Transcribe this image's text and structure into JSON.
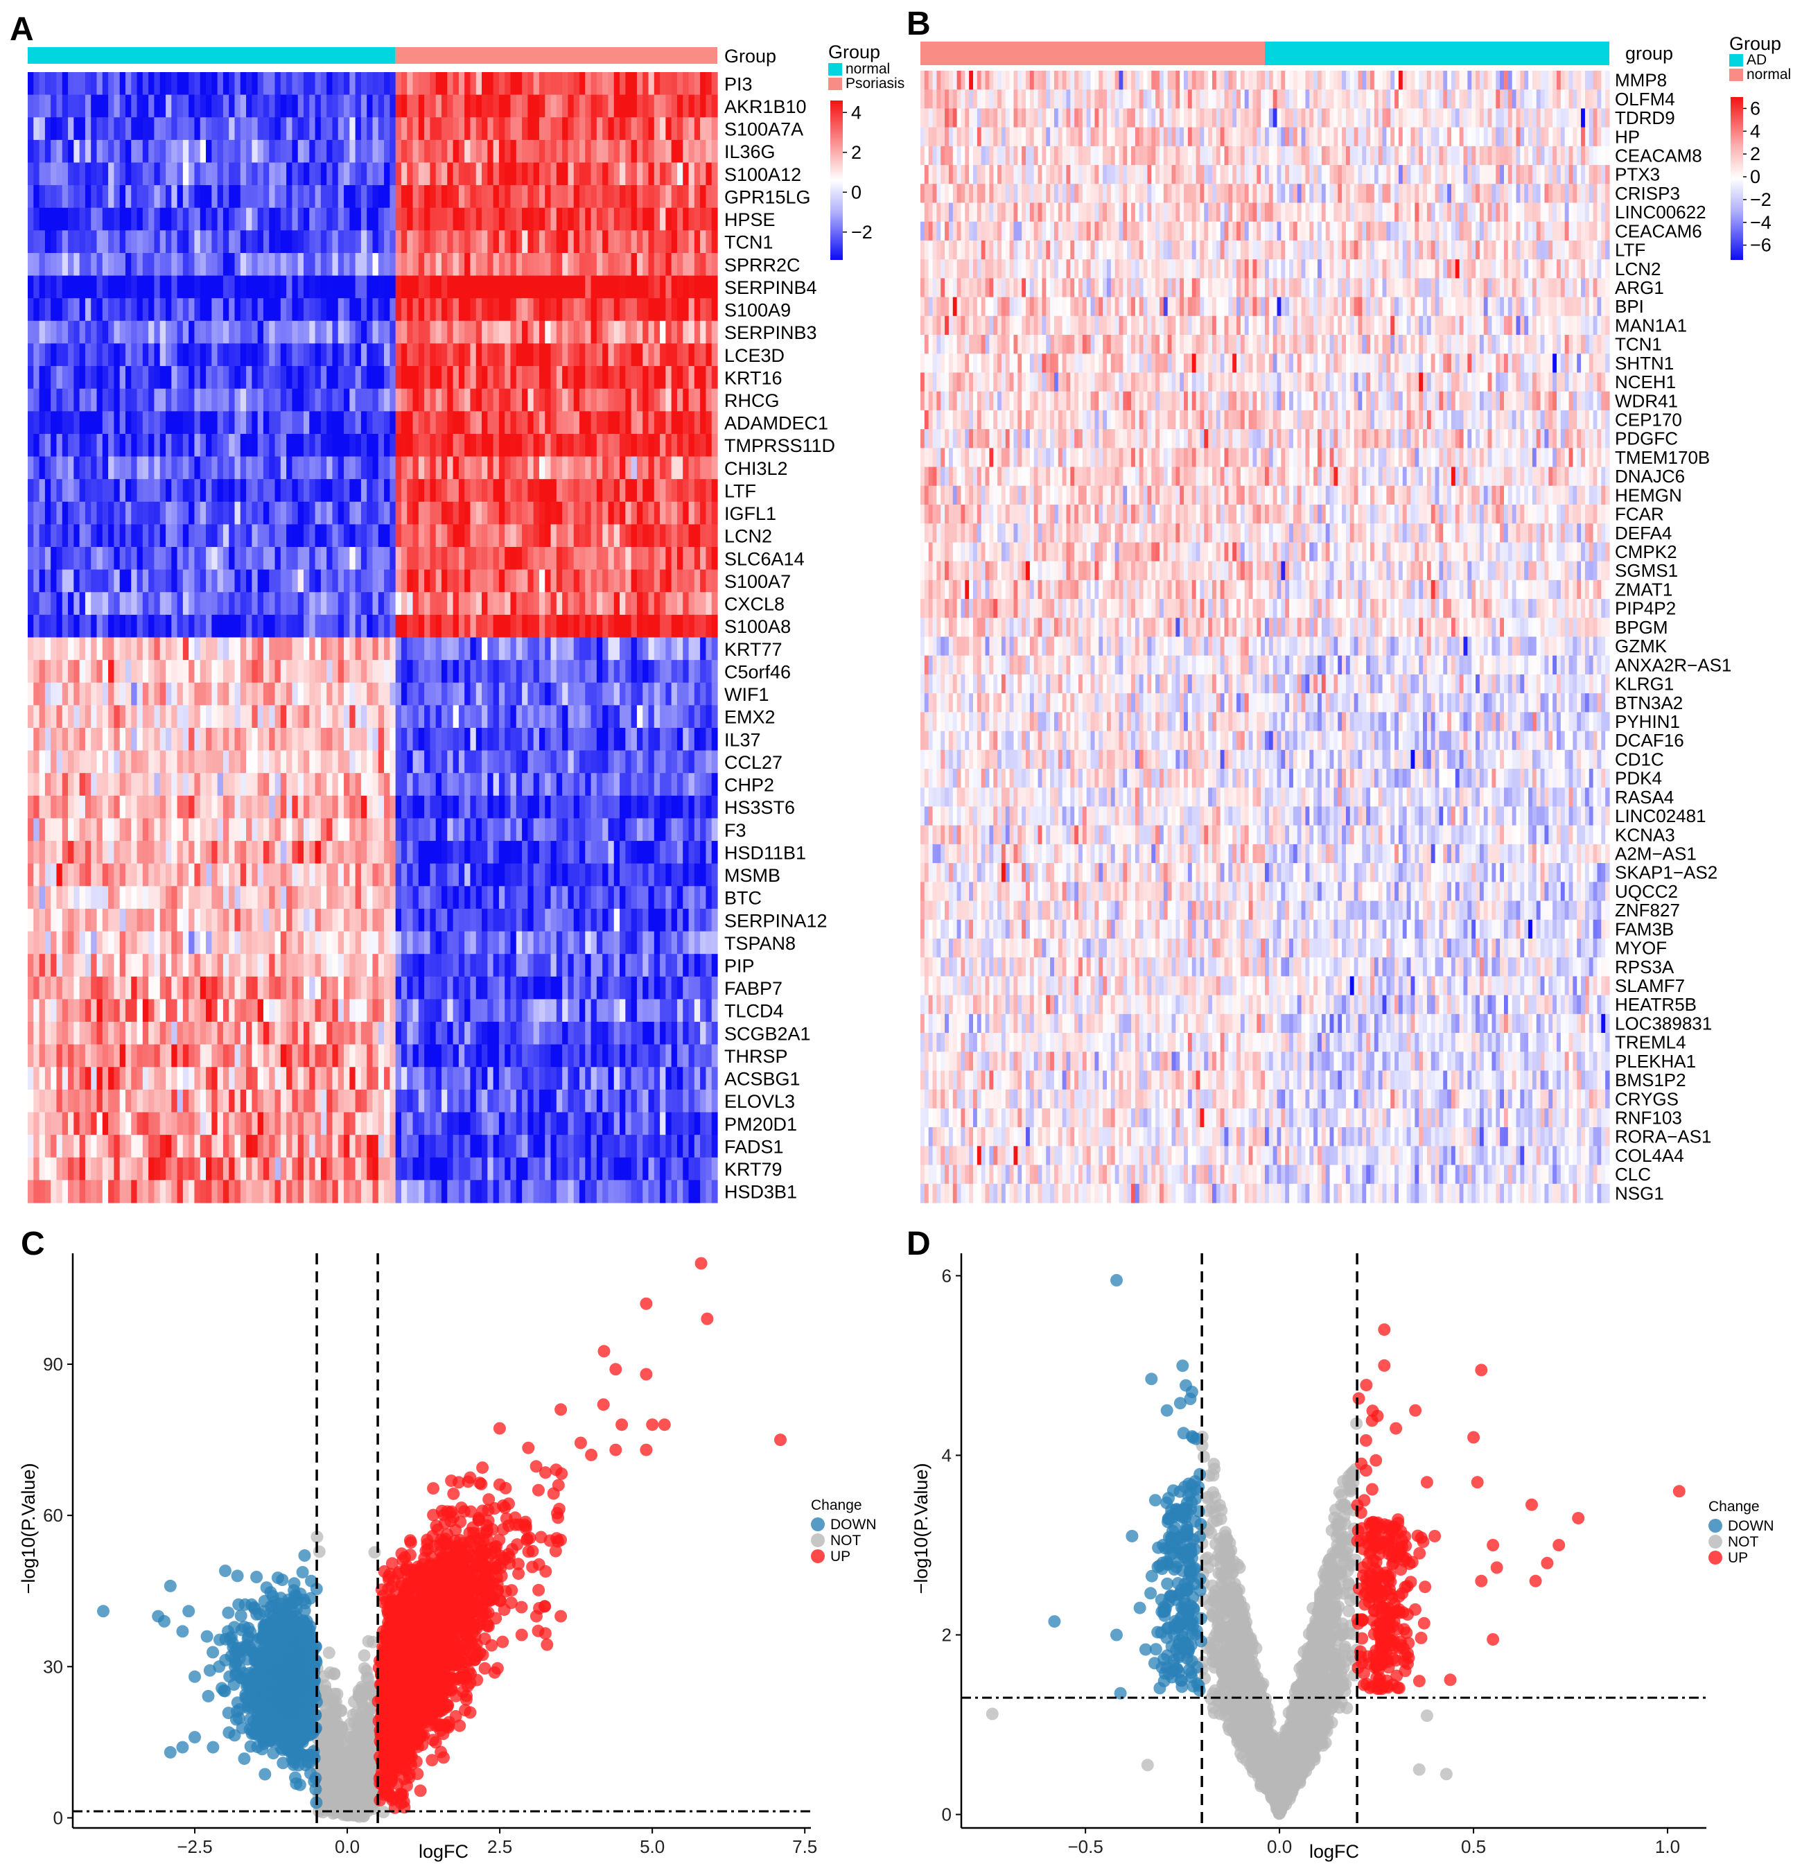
{
  "panels": {
    "A": "A",
    "B": "B",
    "C": "C",
    "D": "D"
  },
  "heatA": {
    "group_label": "Group",
    "legend_title": "Group",
    "legend_groups": [
      "normal",
      "Psoriasis"
    ],
    "scale_ticks": [
      "4",
      "2",
      "0",
      "−2"
    ],
    "colors": {
      "normal": "#00d5e0",
      "disease": "#f98c84",
      "low": "#0b0bf5",
      "mid": "#ffffff",
      "high": "#f51212"
    },
    "normal_fraction": 0.53,
    "up_count": 25,
    "genes": [
      "PI3",
      "AKR1B10",
      "S100A7A",
      "IL36G",
      "S100A12",
      "GPR15LG",
      "HPSE",
      "TCN1",
      "SPRR2C",
      "SERPINB4",
      "S100A9",
      "SERPINB3",
      "LCE3D",
      "KRT16",
      "RHCG",
      "ADAMDEC1",
      "TMPRSS11D",
      "CHI3L2",
      "LTF",
      "IGFL1",
      "LCN2",
      "SLC6A14",
      "S100A7",
      "CXCL8",
      "S100A8",
      "KRT77",
      "C5orf46",
      "WIF1",
      "EMX2",
      "IL37",
      "CCL27",
      "CHP2",
      "HS3ST6",
      "F3",
      "HSD11B1",
      "MSMB",
      "BTC",
      "SERPINA12",
      "TSPAN8",
      "PIP",
      "FABP7",
      "TLCD4",
      "SCGB2A1",
      "THRSP",
      "ACSBG1",
      "ELOVL3",
      "PM20D1",
      "FADS1",
      "KRT79",
      "HSD3B1"
    ]
  },
  "heatB": {
    "group_label": "group",
    "legend_title": "Group",
    "legend_groups": [
      "AD",
      "normal"
    ],
    "scale_ticks": [
      "6",
      "4",
      "2",
      "0",
      "−2",
      "−4",
      "−6"
    ],
    "ad_fraction": 0.5,
    "up_count": 30,
    "genes": [
      "MMP8",
      "OLFM4",
      "TDRD9",
      "HP",
      "CEACAM8",
      "PTX3",
      "CRISP3",
      "LINC00622",
      "CEACAM6",
      "LTF",
      "LCN2",
      "ARG1",
      "BPI",
      "MAN1A1",
      "TCN1",
      "SHTN1",
      "NCEH1",
      "WDR41",
      "CEP170",
      "PDGFC",
      "TMEM170B",
      "DNAJC6",
      "HEMGN",
      "FCAR",
      "DEFA4",
      "CMPK2",
      "SGMS1",
      "ZMAT1",
      "PIP4P2",
      "BPGM",
      "GZMK",
      "ANXA2R−AS1",
      "KLRG1",
      "BTN3A2",
      "PYHIN1",
      "DCAF16",
      "CD1C",
      "PDK4",
      "RASA4",
      "LINC02481",
      "KCNA3",
      "A2M−AS1",
      "SKAP1−AS2",
      "UQCC2",
      "ZNF827",
      "FAM3B",
      "MYOF",
      "RPS3A",
      "SLAMF7",
      "HEATR5B",
      "LOC389831",
      "TREML4",
      "PLEKHA1",
      "BMS1P2",
      "CRYGS",
      "RNF103",
      "RORA−AS1",
      "COL4A4",
      "CLC",
      "NSG1"
    ]
  },
  "chart_data": [
    {
      "type": "scatter",
      "panel": "C",
      "xlabel": "logFC",
      "ylabel": "−log10(P.Value)",
      "xlim": [
        -4.5,
        7.6
      ],
      "ylim": [
        -2,
        112
      ],
      "xticks": [
        "−2.5",
        "0.0",
        "2.5",
        "5.0",
        "7.5"
      ],
      "xtick_values": [
        -2.5,
        0,
        2.5,
        5,
        7.5
      ],
      "yticks": [
        "0",
        "30",
        "60",
        "90"
      ],
      "ytick_values": [
        0,
        30,
        60,
        90
      ],
      "logfc_cutoff": 0.5,
      "p_cutoff": 1.3,
      "legend_title": "Change",
      "legend": [
        "DOWN",
        "NOT",
        "UP"
      ],
      "colors": {
        "DOWN": "#2b82b8",
        "NOT": "#b8b8b8",
        "UP": "#ff1a1a"
      },
      "outliers_up": [
        [
          5.8,
          110
        ],
        [
          5.9,
          99
        ],
        [
          4.9,
          102
        ],
        [
          4.4,
          89
        ],
        [
          4.9,
          88
        ],
        [
          4.2,
          82
        ],
        [
          3.5,
          81
        ],
        [
          4.5,
          78
        ],
        [
          5.0,
          78
        ],
        [
          5.2,
          78
        ],
        [
          4.9,
          73
        ],
        [
          4.4,
          73
        ],
        [
          4.0,
          72
        ],
        [
          7.1,
          75
        ],
        [
          3.5,
          40
        ],
        [
          3.1,
          40
        ]
      ],
      "outliers_down": [
        [
          -4.0,
          41
        ],
        [
          -3.1,
          40
        ],
        [
          -2.9,
          46
        ],
        [
          -3.0,
          39
        ],
        [
          -2.7,
          37
        ],
        [
          -2.5,
          16
        ],
        [
          -2.6,
          41
        ],
        [
          -2.7,
          14
        ],
        [
          -2.9,
          13
        ],
        [
          -2.5,
          28
        ],
        [
          -2.2,
          14
        ],
        [
          -2.0,
          49
        ],
        [
          -1.8,
          48
        ],
        [
          -2.1,
          30
        ],
        [
          -2.3,
          36
        ]
      ]
    },
    {
      "type": "scatter",
      "panel": "D",
      "xlabel": "logFC",
      "ylabel": "−log10(P.Value)",
      "xlim": [
        -0.82,
        1.1
      ],
      "ylim": [
        -0.15,
        6.25
      ],
      "xticks": [
        "−0.5",
        "0.0",
        "0.5",
        "1.0"
      ],
      "xtick_values": [
        -0.5,
        0,
        0.5,
        1.0
      ],
      "yticks": [
        "0",
        "2",
        "4",
        "6"
      ],
      "ytick_values": [
        0,
        2,
        4,
        6
      ],
      "logfc_cutoff": 0.2,
      "p_cutoff": 1.3,
      "legend_title": "Change",
      "legend": [
        "DOWN",
        "NOT",
        "UP"
      ],
      "colors": {
        "DOWN": "#2b82b8",
        "NOT": "#b8b8b8",
        "UP": "#ff1a1a"
      },
      "outliers_up": [
        [
          1.03,
          3.6
        ],
        [
          0.77,
          3.3
        ],
        [
          0.72,
          3.0
        ],
        [
          0.69,
          2.8
        ],
        [
          0.66,
          2.6
        ],
        [
          0.65,
          3.45
        ],
        [
          0.55,
          3.0
        ],
        [
          0.56,
          2.75
        ],
        [
          0.52,
          2.6
        ],
        [
          0.52,
          4.95
        ],
        [
          0.5,
          4.2
        ],
        [
          0.51,
          3.7
        ],
        [
          0.55,
          1.95
        ],
        [
          0.38,
          3.7
        ],
        [
          0.4,
          3.1
        ],
        [
          0.35,
          4.5
        ],
        [
          0.3,
          4.3
        ],
        [
          0.27,
          5.4
        ],
        [
          0.27,
          5.0
        ],
        [
          0.44,
          1.5
        ]
      ],
      "outliers_down": [
        [
          -0.42,
          5.95
        ],
        [
          -0.33,
          4.85
        ],
        [
          -0.29,
          4.5
        ],
        [
          -0.58,
          2.15
        ],
        [
          -0.41,
          1.35
        ],
        [
          -0.42,
          2.0
        ],
        [
          -0.38,
          3.1
        ],
        [
          -0.36,
          2.3
        ],
        [
          -0.32,
          3.5
        ],
        [
          -0.3,
          3.0
        ]
      ],
      "outliers_not": [
        [
          -0.74,
          1.12
        ],
        [
          -0.34,
          0.55
        ],
        [
          -0.23,
          1.7
        ],
        [
          0.36,
          0.5
        ],
        [
          0.43,
          0.45
        ],
        [
          0.38,
          1.1
        ]
      ]
    }
  ]
}
